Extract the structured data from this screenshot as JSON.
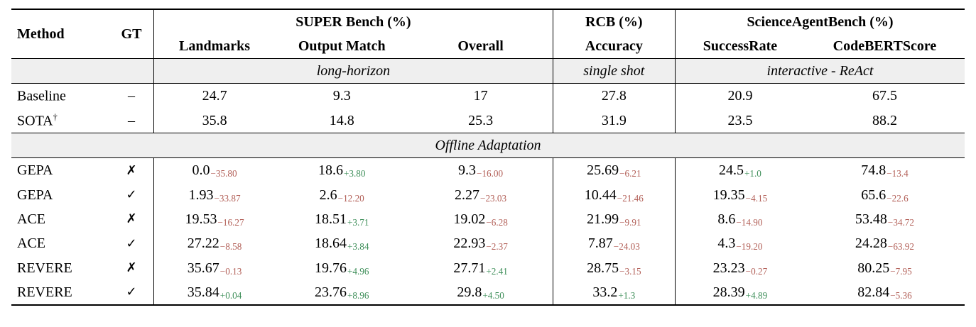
{
  "colors": {
    "positive_delta": "#3f8f5a",
    "negative_delta": "#b25f57"
  },
  "table": {
    "col_headers": {
      "method": "Method",
      "gt": "GT",
      "groups": [
        {
          "label": "SUPER Bench (%)",
          "cols": [
            "Landmarks",
            "Output Match",
            "Overall"
          ]
        },
        {
          "label": "RCB (%)",
          "cols": [
            "Accuracy"
          ]
        },
        {
          "label": "ScienceAgentBench (%)",
          "cols": [
            "SuccessRate",
            "CodeBERTScore"
          ]
        }
      ]
    },
    "mode_row": {
      "super": "long-horizon",
      "rcb": "single shot",
      "sab": "interactive - ReAct"
    },
    "reference_rows": [
      {
        "method": "Baseline",
        "sup": "",
        "gt": "–",
        "values": [
          "24.7",
          "9.3",
          "17",
          "27.8",
          "20.9",
          "67.5"
        ]
      },
      {
        "method": "SOTA",
        "sup": "†",
        "gt": "–",
        "values": [
          "35.8",
          "14.8",
          "25.3",
          "31.9",
          "23.5",
          "88.2"
        ]
      }
    ],
    "section_label": "Offline Adaptation",
    "adaptation_rows": [
      {
        "method": "GEPA",
        "gt": "✗",
        "cells": [
          [
            "0.0",
            "−35.80"
          ],
          [
            "18.6",
            "+3.80"
          ],
          [
            "9.3",
            "−16.00"
          ],
          [
            "25.69",
            "−6.21"
          ],
          [
            "24.5",
            "+1.0"
          ],
          [
            "74.8",
            "−13.4"
          ]
        ]
      },
      {
        "method": "GEPA",
        "gt": "✓",
        "cells": [
          [
            "1.93",
            "−33.87"
          ],
          [
            "2.6",
            "−12.20"
          ],
          [
            "2.27",
            "−23.03"
          ],
          [
            "10.44",
            "−21.46"
          ],
          [
            "19.35",
            "−4.15"
          ],
          [
            "65.6",
            "−22.6"
          ]
        ]
      },
      {
        "method": "ACE",
        "gt": "✗",
        "cells": [
          [
            "19.53",
            "−16.27"
          ],
          [
            "18.51",
            "+3.71"
          ],
          [
            "19.02",
            "−6.28"
          ],
          [
            "21.99",
            "−9.91"
          ],
          [
            "8.6",
            "−14.90"
          ],
          [
            "53.48",
            "−34.72"
          ]
        ]
      },
      {
        "method": "ACE",
        "gt": "✓",
        "cells": [
          [
            "27.22",
            "−8.58"
          ],
          [
            "18.64",
            "+3.84"
          ],
          [
            "22.93",
            "−2.37"
          ],
          [
            "7.87",
            "−24.03"
          ],
          [
            "4.3",
            "−19.20"
          ],
          [
            "24.28",
            "−63.92"
          ]
        ]
      },
      {
        "method": "REVERE",
        "gt": "✗",
        "cells": [
          [
            "35.67",
            "−0.13"
          ],
          [
            "19.76",
            "+4.96"
          ],
          [
            "27.71",
            "+2.41"
          ],
          [
            "28.75",
            "−3.15"
          ],
          [
            "23.23",
            "−0.27"
          ],
          [
            "80.25",
            "−7.95"
          ]
        ]
      },
      {
        "method": "REVERE",
        "gt": "✓",
        "cells": [
          [
            "35.84",
            "+0.04"
          ],
          [
            "23.76",
            "+8.96"
          ],
          [
            "29.8",
            "+4.50"
          ],
          [
            "33.2",
            "+1.3"
          ],
          [
            "28.39",
            "+4.89"
          ],
          [
            "82.84",
            "−5.36"
          ]
        ]
      }
    ]
  }
}
